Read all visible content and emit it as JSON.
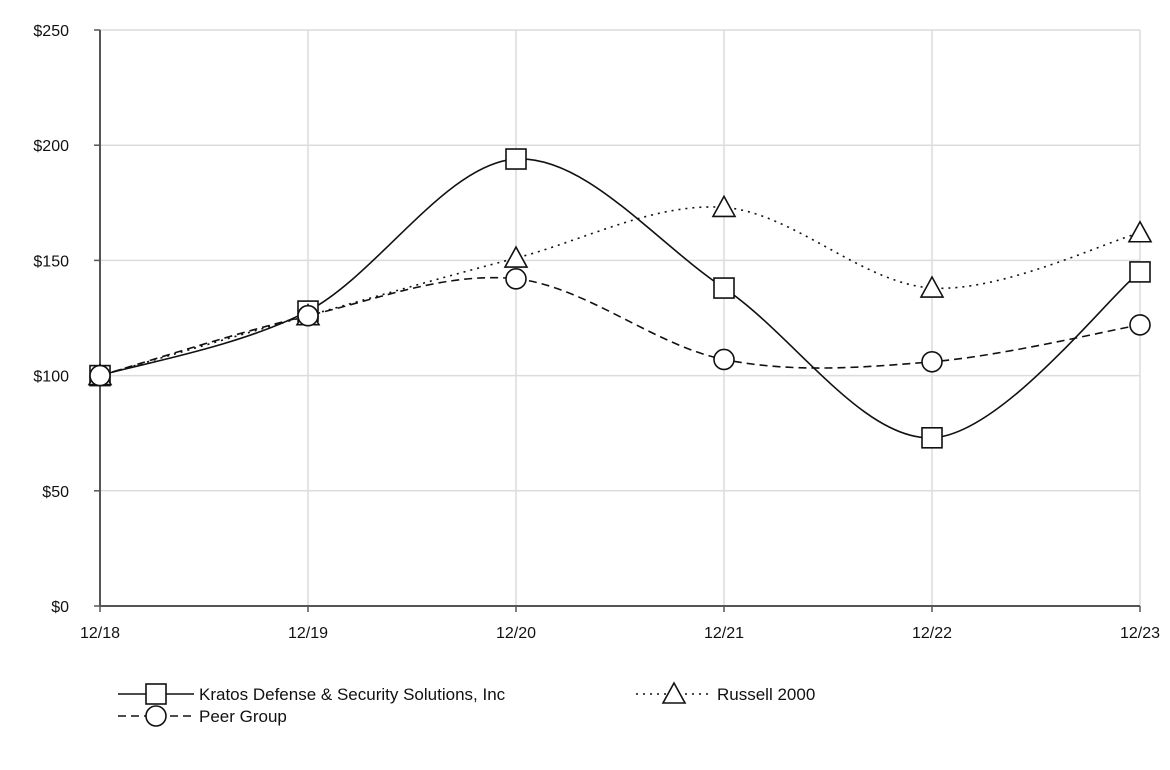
{
  "chart_data": {
    "type": "line",
    "title": "",
    "xlabel": "",
    "ylabel": "",
    "categories": [
      "12/18",
      "12/19",
      "12/20",
      "12/21",
      "12/22",
      "12/23"
    ],
    "ylim": [
      0,
      250
    ],
    "yticks": [
      0,
      50,
      100,
      150,
      200,
      250
    ],
    "ytick_labels": [
      "$0",
      "$50",
      "$100",
      "$150",
      "$200",
      "$250"
    ],
    "grid": true,
    "legend_position": "bottom",
    "series": [
      {
        "name": "Kratos Defense & Security Solutions, Inc",
        "marker": "square",
        "line_style": "solid",
        "values": [
          100,
          128,
          194,
          138,
          73,
          145
        ]
      },
      {
        "name": "Russell 2000",
        "marker": "triangle",
        "line_style": "dotted",
        "values": [
          100,
          126,
          151,
          173,
          138,
          162
        ]
      },
      {
        "name": "Peer Group",
        "marker": "circle",
        "line_style": "dashed",
        "values": [
          100,
          126,
          142,
          107,
          106,
          122
        ]
      }
    ]
  }
}
